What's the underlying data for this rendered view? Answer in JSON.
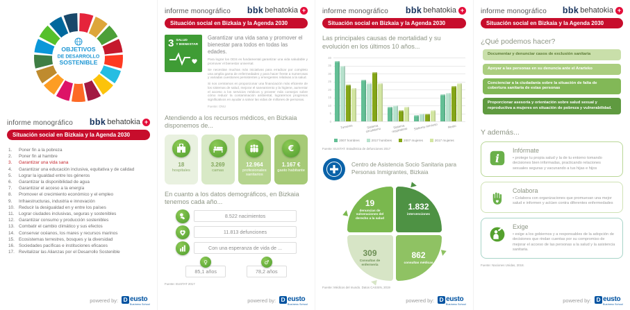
{
  "brand": {
    "informe": "informe monográfico",
    "bbk": "bbk",
    "behatokia": "behatokia",
    "plus": "+",
    "banner": "Situación social en Bizkaia y la Agenda 2030",
    "banner_color": "#c70d2c"
  },
  "footer": {
    "powered_by": "powered by:",
    "logo_d": "D",
    "logo_rest": "eusto",
    "logo_sub": "Business School"
  },
  "sdg_colors": [
    "#e5243b",
    "#dda63a",
    "#4c9f38",
    "#c5192d",
    "#ff3a21",
    "#26bde2",
    "#fcc30b",
    "#a21942",
    "#fd6925",
    "#dd1367",
    "#fd9d24",
    "#bf8b2e",
    "#3f7e44",
    "#0a97d9",
    "#56c02b",
    "#00689d",
    "#19486a"
  ],
  "panel1": {
    "wheel_center": [
      "OBJETIVOS",
      "DE DESARROLLO",
      "SOSTENIBLE"
    ],
    "goals": [
      {
        "num": "1.",
        "text": "Poner fin a la pobreza",
        "highlight": false
      },
      {
        "num": "2.",
        "text": "Poner fin al hambre",
        "highlight": false
      },
      {
        "num": "3.",
        "text": "Garantizar una vida sana",
        "highlight": true
      },
      {
        "num": "4.",
        "text": "Garantizar una educación inclusiva, equitativa y de calidad",
        "highlight": false
      },
      {
        "num": "5.",
        "text": "Lograr la igualdad entre los géneros",
        "highlight": false
      },
      {
        "num": "6.",
        "text": "Garantizar la disponibilidad de agua",
        "highlight": false
      },
      {
        "num": "7.",
        "text": "Garantizar el acceso a la energía",
        "highlight": false
      },
      {
        "num": "8.",
        "text": "Promover el crecimiento económico y el empleo",
        "highlight": false
      },
      {
        "num": "9.",
        "text": "Infraestructuras, industria e innovación",
        "highlight": false
      },
      {
        "num": "10.",
        "text": "Reducir la desigualdad en y entre los países",
        "highlight": false
      },
      {
        "num": "11.",
        "text": "Lograr ciudades inclusivas, seguras y sostenibles",
        "highlight": false
      },
      {
        "num": "12.",
        "text": "Garantizar consumo y producción sostenibles",
        "highlight": false
      },
      {
        "num": "13.",
        "text": "Combatir el cambio climático y sus efectos",
        "highlight": false
      },
      {
        "num": "14.",
        "text": "Conservar océanos, los mares y recursos marinos",
        "highlight": false
      },
      {
        "num": "15.",
        "text": "Ecosistemas terrestres, bosques y la diversidad",
        "highlight": false
      },
      {
        "num": "16.",
        "text": "Sociedades pacíficas e instituciones eficaces",
        "highlight": false
      },
      {
        "num": "17.",
        "text": "Revitalizar las Alianzas por el Desarrollo Sostenible",
        "highlight": false
      }
    ]
  },
  "panel2": {
    "sdg_badge": {
      "number": "3",
      "label": "SALUD\nY BIENESTAR",
      "color": "#3f9c35"
    },
    "title": "Garantizar una vida sana y promover el bienestar para todos en todas las edades.",
    "paragraphs": [
      "Para lograr los ODS es fundamental garantizar una vida saludable y promover el bienestar universal.",
      "Se necesitan muchas más iniciativas para erradicar por completo una amplia gama de enfermedades y para hacer frente a numerosas y variadas cuestiones persistentes y emergentes relativas a la salud.",
      "Si nos centramos en proporcionar una financiación más eficiente de los sistemas de salud, mejorar el saneamiento y la higiene, aumentar el acceso a los servicios médicos y proveer más consejos sobre cómo reducir la contaminación ambiental, lograremos progresos significativos en ayudar a salvar las vidas de millones de personas."
    ],
    "source_un": "Fuente: ONU",
    "resources_heading": "Atendiendo a los recursos médicos, en Bizkaia disponemos de...",
    "resources": [
      {
        "icon": "hospital",
        "value": "18",
        "label": "hospitales",
        "bg": "#e9f1e0",
        "fg": "#8aa968"
      },
      {
        "icon": "bed",
        "value": "3.269",
        "label": "camas",
        "bg": "#d8e9c6",
        "fg": "#83a75c"
      },
      {
        "icon": "people",
        "value": "12.964",
        "label": "profesionales sanitarios",
        "bg": "#b5d48e",
        "fg": "#ffffff"
      },
      {
        "icon": "euro",
        "value": "1.167 €",
        "label": "gasto habitante",
        "bg": "#a6ca77",
        "fg": "#ffffff"
      }
    ],
    "demography_heading": "En cuanto a los datos demográficos, en Bizkaia tenemos cada año...",
    "demography": [
      {
        "icon": "baby",
        "text": "8.522 nacimientos"
      },
      {
        "icon": "heartplus",
        "text": "11.813 defunciones"
      },
      {
        "icon": "barchart",
        "text": "Con una esperanza de vida de ..."
      }
    ],
    "life_expectancy": [
      {
        "icon": "female",
        "text": "85,1 años"
      },
      {
        "icon": "male",
        "text": "78,2 años"
      }
    ],
    "source_eustat": "Fuente: EUSTAT 2017"
  },
  "panel3": {
    "cassin": {
      "logo_name": "Médicos del Mundo",
      "title": "Centro de Asistencia Socio Sanitaria para Personas Inmigrantes, Bizkaia",
      "quadrants": [
        {
          "value": "19",
          "label": "denuncias de vulneraciones del derecho a la salud",
          "color": "#7ab84e",
          "text_color": "#ffffff"
        },
        {
          "value": "1.832",
          "label": "intervenciones",
          "color": "#4e9244",
          "text_color": "#ffffff"
        },
        {
          "value": "309",
          "label": "Consultas de enfermería",
          "color": "#d7e5c6",
          "text_color": "#6d8f55"
        },
        {
          "value": "862",
          "label": "consultas médicas",
          "color": "#8fc263",
          "text_color": "#ffffff"
        }
      ],
      "source": "Fuente: Médicos del mundo. Datos CASSIN, 2019"
    }
  },
  "panel4": {
    "heading": "¿Qué podemos hacer?",
    "actions": [
      {
        "text": "Documentar y denunciar casos de exclusión sanitaria",
        "color": "#c9dfaa",
        "text_color": "#5d7c36"
      },
      {
        "text": "Apoyar a las personas en su denuncia ante el Ararteko",
        "color": "#abce80",
        "text_color": "#ffffff"
      },
      {
        "text": "Concienciar a la ciudadanía sobre la situación de falta de cobertura sanitaria de estas personas",
        "color": "#82b857",
        "text_color": "#ffffff"
      },
      {
        "text": "Proporcionar asesoría y orientación sobre salud sexual y reproductiva a mujeres en situación de pobreza y vulnerabilidad.",
        "color": "#5f9a40",
        "text_color": "#ffffff"
      }
    ],
    "ademas_heading": "Y además...",
    "cards": [
      {
        "icon": "info",
        "title": "Infórmate",
        "text": "protege tu propia salud y la de tu entorno tomando decisiones bien informadas, practicando relaciones sexuales seguras y vacunando a tus hijas e hijos",
        "border": "#b9d796"
      },
      {
        "icon": "hand",
        "title": "Colabora",
        "text": "Colabora con organizaciones que promuevan una mejor salud e informen y actúen contra diferentes enfermedades",
        "border": "#cfe2b4"
      },
      {
        "icon": "person",
        "title": "Exige",
        "text": "exige a los gobiernos y a responsables de la adopción de decisiones que rindan cuentas por su compromiso de mejorar el acceso de las personas a la salud y la asistencia sanitaria.",
        "border": "#a8d4c8"
      }
    ],
    "source": "Fuente: Naciones Unidas, 2018."
  },
  "chart_data": {
    "type": "bar",
    "title": "Las principales causas de mortalidad y su evolución en los últimos 10 años...",
    "categories": [
      "Tumores",
      "Sistema circulatorio",
      "Sistema respiratorio",
      "Sistema nervioso",
      "Resto"
    ],
    "series": [
      {
        "name": "2007 hombres",
        "color": "#63bf95",
        "values": [
          38,
          26,
          9,
          4,
          17
        ]
      },
      {
        "name": "2017 hombres",
        "color": "#b7e2cd",
        "values": [
          35,
          24,
          10,
          5,
          18
        ]
      },
      {
        "name": "2007 mujeres",
        "color": "#85a617",
        "values": [
          23,
          31,
          7,
          5,
          22
        ]
      },
      {
        "name": "2017 mujeres",
        "color": "#d3e6a2",
        "values": [
          21,
          24,
          9,
          7,
          24
        ]
      }
    ],
    "xlabel": "",
    "ylabel": "",
    "ylim": [
      0,
      40
    ],
    "ystep": 5,
    "grid": true,
    "legend_position": "bottom",
    "source": "Fuente: EUSTAT. Estadística de defunciones 2017"
  }
}
